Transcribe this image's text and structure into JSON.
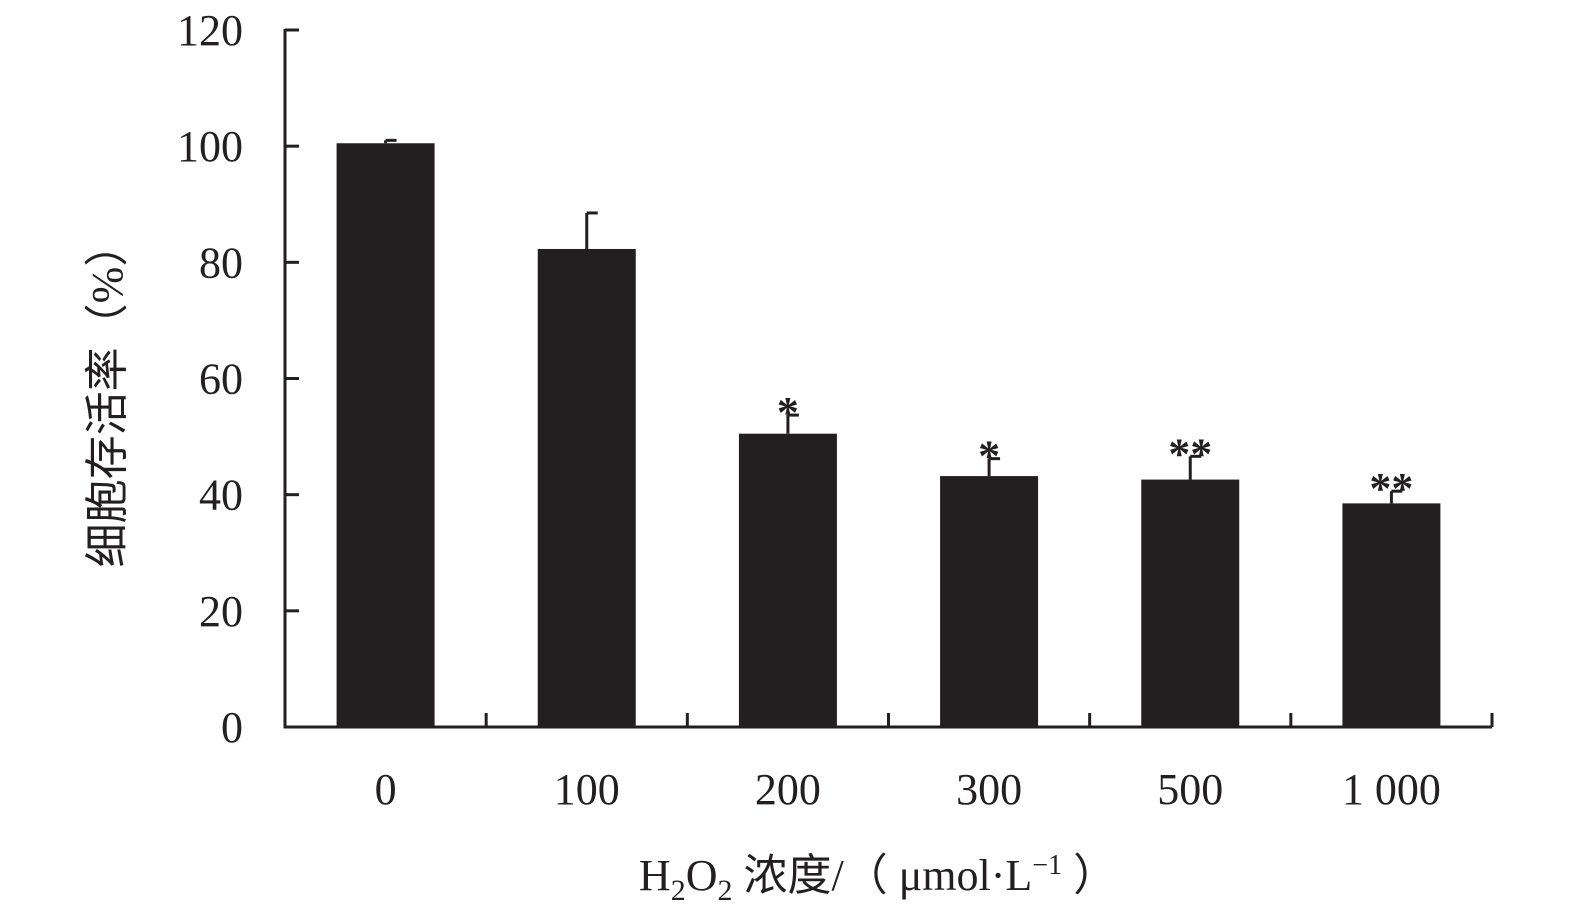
{
  "chart_data": {
    "type": "bar",
    "categories": [
      "0",
      "100",
      "200",
      "300",
      "500",
      "1 000"
    ],
    "values": [
      100.5,
      82.3,
      50.5,
      43.2,
      42.6,
      38.5
    ],
    "errors": [
      0.5,
      6.2,
      3.2,
      3.0,
      4.0,
      2.1
    ],
    "significance": [
      "",
      "",
      "*",
      "*",
      "**",
      "**"
    ],
    "ylabel": "细胞存活率（%）",
    "xlabel": {
      "prefix": "H",
      "sub1": "2",
      "mid": "O",
      "sub2": "2",
      "rest": " 浓度/（ μmol·L",
      "sup": "−1",
      "close": " ）"
    },
    "y_ticks": [
      "0",
      "20",
      "40",
      "60",
      "80",
      "100",
      "120"
    ],
    "ylim": [
      0,
      120
    ],
    "bar_color": "#231f20",
    "axis_color": "#231f20",
    "grid": false,
    "legend": "none"
  }
}
